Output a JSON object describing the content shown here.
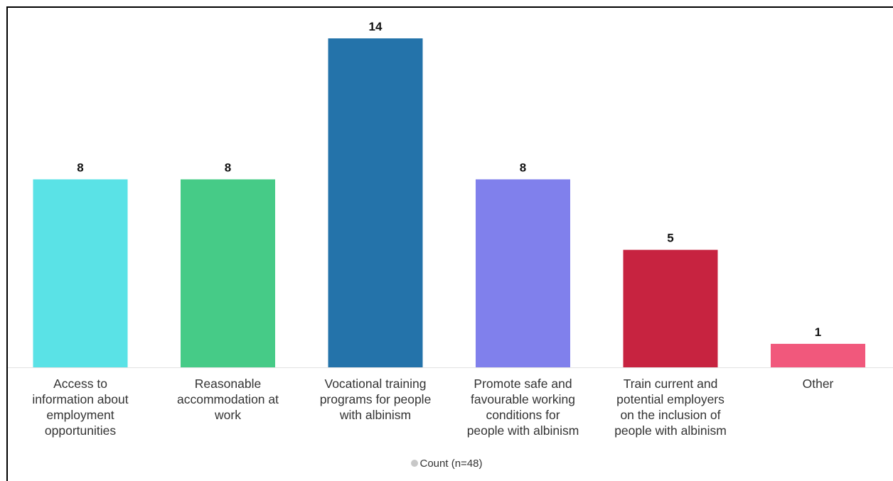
{
  "chart_data": {
    "type": "bar",
    "categories": [
      "Access to information about employment opportunities",
      "Reasonable accommodation at work",
      "Vocational training programs for people with albinism",
      "Promote safe and favourable working conditions for people with albinism",
      "Train current and potential employers on the inclusion of people with albinism",
      "Other"
    ],
    "category_lines": [
      [
        "Access to",
        "information about",
        "employment",
        "opportunities"
      ],
      [
        "Reasonable",
        "accommodation at",
        "work"
      ],
      [
        "Vocational training",
        "programs for people",
        "with albinism"
      ],
      [
        "Promote safe and",
        "favourable working",
        "conditions for",
        "people with albinism"
      ],
      [
        "Train current and",
        "potential employers",
        "on the inclusion of",
        "people with albinism"
      ],
      [
        "Other"
      ]
    ],
    "series": [
      {
        "name": "Count (n=48)",
        "values": [
          8,
          8,
          14,
          8,
          5,
          1
        ]
      }
    ],
    "colors": [
      "#5ae2e6",
      "#46cb87",
      "#2473aa",
      "#8080ec",
      "#c72340",
      "#f1587c"
    ],
    "legend_color": "#c8c8c8",
    "ylim": [
      0,
      14
    ],
    "data_labels": true,
    "grid": false,
    "legend_position": "bottom"
  }
}
